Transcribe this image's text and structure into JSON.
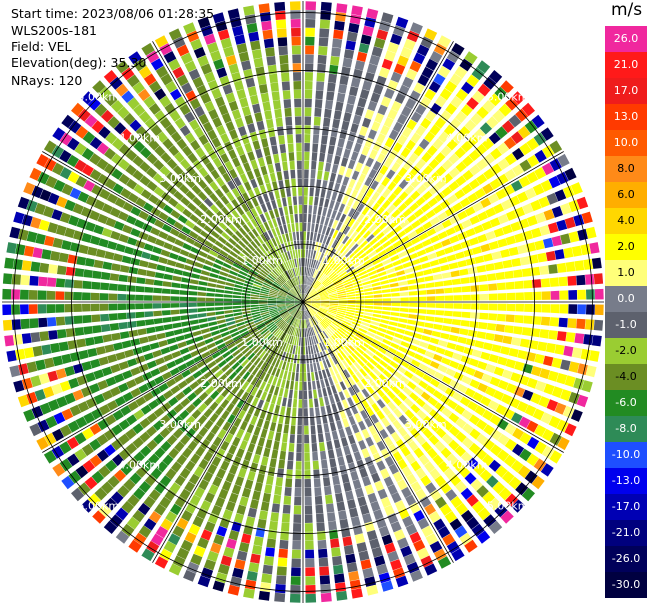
{
  "info": {
    "start_time": "Start time: 2023/08/06 01:28:35",
    "instrument": "WLS200s-181",
    "field": "Field: VEL",
    "elevation": "Elevation(deg): 35.30",
    "nrays": "NRays: 120"
  },
  "colorbar": {
    "unit": "m/s",
    "bins": [
      {
        "label": "26.0",
        "color": "#f0289e"
      },
      {
        "label": "21.0",
        "color": "#ff1a1a"
      },
      {
        "label": "17.0",
        "color": "#ef1c1c"
      },
      {
        "label": "13.0",
        "color": "#ff3a00"
      },
      {
        "label": "10.0",
        "color": "#ff5a00"
      },
      {
        "label": "8.0",
        "color": "#ff8a18"
      },
      {
        "label": "6.0",
        "color": "#ffae00"
      },
      {
        "label": "4.0",
        "color": "#ffd700"
      },
      {
        "label": "2.0",
        "color": "#ffff00"
      },
      {
        "label": "1.0",
        "color": "#ffff7a"
      },
      {
        "label": "0.0",
        "color": "#777c8a"
      },
      {
        "label": "-1.0",
        "color": "#5d616d"
      },
      {
        "label": "-2.0",
        "color": "#9acd32"
      },
      {
        "label": "-4.0",
        "color": "#6b8e23"
      },
      {
        "label": "-6.0",
        "color": "#228b22"
      },
      {
        "label": "-8.0",
        "color": "#2e8b57"
      },
      {
        "label": "-10.0",
        "color": "#1e4fff"
      },
      {
        "label": "-13.0",
        "color": "#0000ee"
      },
      {
        "label": "-17.0",
        "color": "#0000b4"
      },
      {
        "label": "-21.0",
        "color": "#00007e"
      },
      {
        "label": "-26.0",
        "color": "#00005a"
      },
      {
        "label": "-30.0",
        "color": "#000040"
      }
    ]
  },
  "chart_data": {
    "type": "heatmap",
    "projection": "polar (PPI scan)",
    "field": "VEL",
    "units": "m/s",
    "nrays": 120,
    "range_rings_km": [
      1.0,
      2.0,
      3.0,
      4.0,
      5.0
    ],
    "max_range_km": 5.2,
    "ring_labels": [
      "1.00km",
      "2.00km",
      "3.00km",
      "4.00km",
      "5.00km"
    ],
    "color_range": [
      -30.0,
      26.0
    ],
    "approx_pattern": [
      {
        "azimuth_deg": 0,
        "velocity_ms": -1.0
      },
      {
        "azimuth_deg": 45,
        "velocity_ms": 2.5
      },
      {
        "azimuth_deg": 90,
        "velocity_ms": 3.0
      },
      {
        "azimuth_deg": 135,
        "velocity_ms": 2.5
      },
      {
        "azimuth_deg": 180,
        "velocity_ms": -1.0
      },
      {
        "azimuth_deg": 225,
        "velocity_ms": -3.5
      },
      {
        "azimuth_deg": 270,
        "velocity_ms": -5.0
      },
      {
        "azimuth_deg": 315,
        "velocity_ms": -2.5
      }
    ]
  }
}
